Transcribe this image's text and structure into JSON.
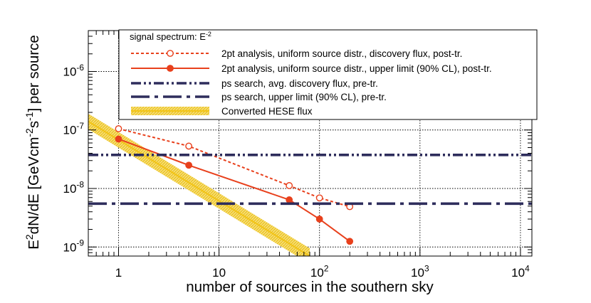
{
  "chart_data": {
    "type": "line",
    "xscale": "log",
    "yscale": "log",
    "xlim": [
      0.5,
      13000
    ],
    "ylim": [
      7e-10,
      5e-06
    ],
    "grid": true,
    "legend_placement": "top-right",
    "legend_title": "signal spectrum: E",
    "legend_title_sup": "-2",
    "xlabel": "number of sources in the southern sky",
    "ylabel": {
      "parts": [
        {
          "t": "E",
          "s": "n"
        },
        {
          "t": "2",
          "s": "sup"
        },
        {
          "t": "dN/dE [GeVcm",
          "s": "n"
        },
        {
          "t": "-2",
          "s": "sup"
        },
        {
          "t": "s",
          "s": "n"
        },
        {
          "t": "-1",
          "s": "sup"
        },
        {
          "t": "] per source",
          "s": "n"
        }
      ]
    },
    "x_ticks": [
      {
        "value": 1,
        "base": "1",
        "exp": ""
      },
      {
        "value": 10,
        "base": "10",
        "exp": ""
      },
      {
        "value": 100,
        "base": "10",
        "exp": "2"
      },
      {
        "value": 1000,
        "base": "10",
        "exp": "3"
      },
      {
        "value": 10000,
        "base": "10",
        "exp": "4"
      }
    ],
    "y_ticks": [
      {
        "value": 1e-09,
        "base": "10",
        "exp": "-9"
      },
      {
        "value": 1e-08,
        "base": "10",
        "exp": "-8"
      },
      {
        "value": 1e-07,
        "base": "10",
        "exp": "-7"
      },
      {
        "value": 1e-06,
        "base": "10",
        "exp": "-6"
      }
    ],
    "series": [
      {
        "name": "2pt analysis, uniform source distr., discovery flux, post-tr.",
        "style": "dashed",
        "marker": "open-circle",
        "color": "#e8401c",
        "x": [
          1,
          5,
          50,
          100,
          200
        ],
        "y": [
          1.05e-07,
          5.3e-08,
          1.12e-08,
          6.9e-09,
          4.9e-09
        ]
      },
      {
        "name": "2pt analysis, uniform source distr., upper limit (90% CL), post-tr.",
        "style": "solid",
        "marker": "filled-circle",
        "color": "#e8401c",
        "x": [
          1,
          5,
          50,
          100,
          200
        ],
        "y": [
          7e-08,
          2.5e-08,
          6.4e-09,
          3e-09,
          1.25e-09
        ]
      },
      {
        "name": "ps search, avg. discovery flux, pre-tr.",
        "style": "dash-dot-dot",
        "marker": "none",
        "color": "#2e2d5c",
        "x": [
          0.5,
          13000
        ],
        "y": [
          3.75e-08,
          3.75e-08
        ]
      },
      {
        "name": "ps search, upper limit (90% CL), pre-tr.",
        "style": "long-dash-dot",
        "marker": "none",
        "color": "#2e2d5c",
        "x": [
          0.5,
          13000
        ],
        "y": [
          5.5e-09,
          5.5e-09
        ]
      },
      {
        "name": "Converted HESE flux",
        "style": "band",
        "marker": "none",
        "color": "#f2c417",
        "x": [
          0.5,
          80
        ],
        "y": [
          1.4e-07,
          7e-10
        ],
        "y_band_upper": [
          1.9e-07,
          9.5e-10
        ],
        "y_band_lower": [
          1.03e-07,
          5.15e-10
        ]
      }
    ]
  }
}
